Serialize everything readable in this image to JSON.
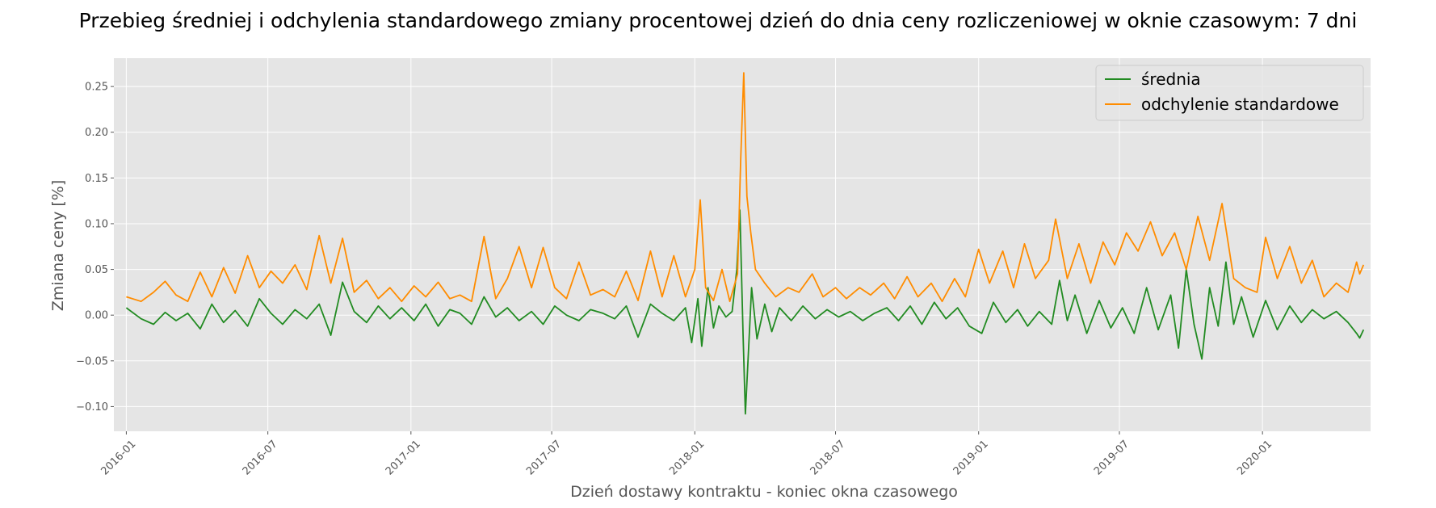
{
  "chart_data": {
    "type": "line",
    "title": "Przebieg średniej i odchylenia standardowego zmiany procentowej dzień do dnia ceny rozliczeniowej w oknie czasowym: 7 dni",
    "xlabel": "Dzień dostawy kontraktu - koniec okna czasowego",
    "ylabel": "Zmiana ceny [%]",
    "xlim": [
      "2015-12-16",
      "2020-05-19"
    ],
    "ylim": [
      -0.127,
      0.281
    ],
    "x_ticks": [
      "2016-01",
      "2016-07",
      "2017-01",
      "2017-07",
      "2018-01",
      "2018-07",
      "2019-01",
      "2019-07",
      "2020-01"
    ],
    "y_ticks": [
      -0.1,
      -0.05,
      0.0,
      0.05,
      0.1,
      0.15,
      0.2,
      0.25
    ],
    "y_tick_labels": [
      "−0.10",
      "−0.05",
      "0.00",
      "0.05",
      "0.10",
      "0.15",
      "0.20",
      "0.25"
    ],
    "grid": true,
    "legend_position": "top-right",
    "background": "#e5e5e5",
    "series": [
      {
        "name": "średnia",
        "color": "#228b22",
        "points": [
          [
            "2016-01-01",
            0.008
          ],
          [
            "2016-01-20",
            -0.004
          ],
          [
            "2016-02-05",
            -0.01
          ],
          [
            "2016-02-20",
            0.003
          ],
          [
            "2016-03-05",
            -0.006
          ],
          [
            "2016-03-20",
            0.002
          ],
          [
            "2016-04-05",
            -0.015
          ],
          [
            "2016-04-20",
            0.012
          ],
          [
            "2016-05-05",
            -0.008
          ],
          [
            "2016-05-20",
            0.005
          ],
          [
            "2016-06-05",
            -0.012
          ],
          [
            "2016-06-20",
            0.018
          ],
          [
            "2016-07-05",
            0.002
          ],
          [
            "2016-07-20",
            -0.01
          ],
          [
            "2016-08-05",
            0.006
          ],
          [
            "2016-08-20",
            -0.004
          ],
          [
            "2016-09-05",
            0.012
          ],
          [
            "2016-09-20",
            -0.022
          ],
          [
            "2016-10-05",
            0.036
          ],
          [
            "2016-10-20",
            0.004
          ],
          [
            "2016-11-05",
            -0.008
          ],
          [
            "2016-11-20",
            0.01
          ],
          [
            "2016-12-05",
            -0.004
          ],
          [
            "2016-12-20",
            0.008
          ],
          [
            "2017-01-05",
            -0.006
          ],
          [
            "2017-01-20",
            0.012
          ],
          [
            "2017-02-05",
            -0.012
          ],
          [
            "2017-02-20",
            0.006
          ],
          [
            "2017-03-05",
            0.002
          ],
          [
            "2017-03-20",
            -0.01
          ],
          [
            "2017-04-05",
            0.02
          ],
          [
            "2017-04-20",
            -0.002
          ],
          [
            "2017-05-05",
            0.008
          ],
          [
            "2017-05-20",
            -0.006
          ],
          [
            "2017-06-05",
            0.004
          ],
          [
            "2017-06-20",
            -0.01
          ],
          [
            "2017-07-05",
            0.01
          ],
          [
            "2017-07-20",
            0.0
          ],
          [
            "2017-08-05",
            -0.006
          ],
          [
            "2017-08-20",
            0.006
          ],
          [
            "2017-09-05",
            0.002
          ],
          [
            "2017-09-20",
            -0.004
          ],
          [
            "2017-10-05",
            0.01
          ],
          [
            "2017-10-20",
            -0.024
          ],
          [
            "2017-11-05",
            0.012
          ],
          [
            "2017-11-20",
            0.002
          ],
          [
            "2017-12-05",
            -0.006
          ],
          [
            "2017-12-20",
            0.008
          ],
          [
            "2017-12-28",
            -0.03
          ],
          [
            "2018-01-05",
            0.018
          ],
          [
            "2018-01-10",
            -0.034
          ],
          [
            "2018-01-18",
            0.03
          ],
          [
            "2018-01-25",
            -0.014
          ],
          [
            "2018-02-01",
            0.01
          ],
          [
            "2018-02-10",
            -0.002
          ],
          [
            "2018-02-18",
            0.004
          ],
          [
            "2018-02-24",
            0.05
          ],
          [
            "2018-02-28",
            0.115
          ],
          [
            "2018-03-04",
            -0.02
          ],
          [
            "2018-03-07",
            -0.108
          ],
          [
            "2018-03-11",
            -0.04
          ],
          [
            "2018-03-15",
            0.03
          ],
          [
            "2018-03-22",
            -0.026
          ],
          [
            "2018-04-01",
            0.012
          ],
          [
            "2018-04-10",
            -0.018
          ],
          [
            "2018-04-20",
            0.008
          ],
          [
            "2018-05-05",
            -0.006
          ],
          [
            "2018-05-20",
            0.01
          ],
          [
            "2018-06-05",
            -0.004
          ],
          [
            "2018-06-20",
            0.006
          ],
          [
            "2018-07-05",
            -0.002
          ],
          [
            "2018-07-20",
            0.004
          ],
          [
            "2018-08-05",
            -0.006
          ],
          [
            "2018-08-20",
            0.002
          ],
          [
            "2018-09-05",
            0.008
          ],
          [
            "2018-09-20",
            -0.006
          ],
          [
            "2018-10-05",
            0.01
          ],
          [
            "2018-10-20",
            -0.01
          ],
          [
            "2018-11-05",
            0.014
          ],
          [
            "2018-11-20",
            -0.004
          ],
          [
            "2018-12-05",
            0.008
          ],
          [
            "2018-12-20",
            -0.012
          ],
          [
            "2019-01-05",
            -0.02
          ],
          [
            "2019-01-20",
            0.014
          ],
          [
            "2019-02-05",
            -0.008
          ],
          [
            "2019-02-20",
            0.006
          ],
          [
            "2019-03-05",
            -0.012
          ],
          [
            "2019-03-20",
            0.004
          ],
          [
            "2019-04-05",
            -0.01
          ],
          [
            "2019-04-15",
            0.038
          ],
          [
            "2019-04-25",
            -0.006
          ],
          [
            "2019-05-05",
            0.022
          ],
          [
            "2019-05-20",
            -0.02
          ],
          [
            "2019-06-05",
            0.016
          ],
          [
            "2019-06-20",
            -0.014
          ],
          [
            "2019-07-05",
            0.008
          ],
          [
            "2019-07-20",
            -0.02
          ],
          [
            "2019-08-05",
            0.03
          ],
          [
            "2019-08-20",
            -0.016
          ],
          [
            "2019-09-05",
            0.022
          ],
          [
            "2019-09-15",
            -0.036
          ],
          [
            "2019-09-25",
            0.05
          ],
          [
            "2019-10-05",
            -0.01
          ],
          [
            "2019-10-15",
            -0.048
          ],
          [
            "2019-10-25",
            0.03
          ],
          [
            "2019-11-05",
            -0.012
          ],
          [
            "2019-11-15",
            0.058
          ],
          [
            "2019-11-25",
            -0.01
          ],
          [
            "2019-12-05",
            0.02
          ],
          [
            "2019-12-20",
            -0.024
          ],
          [
            "2020-01-05",
            0.016
          ],
          [
            "2020-01-20",
            -0.016
          ],
          [
            "2020-02-05",
            0.01
          ],
          [
            "2020-02-20",
            -0.008
          ],
          [
            "2020-03-05",
            0.006
          ],
          [
            "2020-03-20",
            -0.004
          ],
          [
            "2020-04-05",
            0.004
          ],
          [
            "2020-04-20",
            -0.008
          ],
          [
            "2020-05-01",
            -0.02
          ],
          [
            "2020-05-05",
            -0.025
          ],
          [
            "2020-05-10",
            -0.016
          ]
        ]
      },
      {
        "name": "odchylenie standardowe",
        "color": "#ff8c00",
        "points": [
          [
            "2016-01-01",
            0.02
          ],
          [
            "2016-01-20",
            0.015
          ],
          [
            "2016-02-05",
            0.025
          ],
          [
            "2016-02-20",
            0.037
          ],
          [
            "2016-03-05",
            0.022
          ],
          [
            "2016-03-20",
            0.015
          ],
          [
            "2016-04-05",
            0.047
          ],
          [
            "2016-04-20",
            0.02
          ],
          [
            "2016-05-05",
            0.052
          ],
          [
            "2016-05-20",
            0.024
          ],
          [
            "2016-06-05",
            0.065
          ],
          [
            "2016-06-20",
            0.03
          ],
          [
            "2016-07-05",
            0.048
          ],
          [
            "2016-07-20",
            0.035
          ],
          [
            "2016-08-05",
            0.055
          ],
          [
            "2016-08-20",
            0.028
          ],
          [
            "2016-09-05",
            0.087
          ],
          [
            "2016-09-20",
            0.035
          ],
          [
            "2016-10-05",
            0.084
          ],
          [
            "2016-10-20",
            0.025
          ],
          [
            "2016-11-05",
            0.038
          ],
          [
            "2016-11-20",
            0.018
          ],
          [
            "2016-12-05",
            0.03
          ],
          [
            "2016-12-20",
            0.015
          ],
          [
            "2017-01-05",
            0.032
          ],
          [
            "2017-01-20",
            0.02
          ],
          [
            "2017-02-05",
            0.036
          ],
          [
            "2017-02-20",
            0.018
          ],
          [
            "2017-03-05",
            0.022
          ],
          [
            "2017-03-20",
            0.015
          ],
          [
            "2017-04-05",
            0.086
          ],
          [
            "2017-04-20",
            0.018
          ],
          [
            "2017-05-05",
            0.04
          ],
          [
            "2017-05-20",
            0.075
          ],
          [
            "2017-06-05",
            0.03
          ],
          [
            "2017-06-20",
            0.074
          ],
          [
            "2017-07-05",
            0.03
          ],
          [
            "2017-07-20",
            0.018
          ],
          [
            "2017-08-05",
            0.058
          ],
          [
            "2017-08-20",
            0.022
          ],
          [
            "2017-09-05",
            0.028
          ],
          [
            "2017-09-20",
            0.02
          ],
          [
            "2017-10-05",
            0.048
          ],
          [
            "2017-10-20",
            0.016
          ],
          [
            "2017-11-05",
            0.07
          ],
          [
            "2017-11-20",
            0.02
          ],
          [
            "2017-12-05",
            0.065
          ],
          [
            "2017-12-20",
            0.02
          ],
          [
            "2018-01-01",
            0.05
          ],
          [
            "2018-01-08",
            0.126
          ],
          [
            "2018-01-15",
            0.03
          ],
          [
            "2018-01-25",
            0.016
          ],
          [
            "2018-02-05",
            0.05
          ],
          [
            "2018-02-15",
            0.015
          ],
          [
            "2018-02-25",
            0.045
          ],
          [
            "2018-03-01",
            0.17
          ],
          [
            "2018-03-05",
            0.265
          ],
          [
            "2018-03-09",
            0.13
          ],
          [
            "2018-03-14",
            0.09
          ],
          [
            "2018-03-20",
            0.05
          ],
          [
            "2018-04-01",
            0.035
          ],
          [
            "2018-04-15",
            0.02
          ],
          [
            "2018-05-01",
            0.03
          ],
          [
            "2018-05-15",
            0.025
          ],
          [
            "2018-06-01",
            0.045
          ],
          [
            "2018-06-15",
            0.02
          ],
          [
            "2018-07-01",
            0.03
          ],
          [
            "2018-07-15",
            0.018
          ],
          [
            "2018-08-01",
            0.03
          ],
          [
            "2018-08-15",
            0.022
          ],
          [
            "2018-09-01",
            0.035
          ],
          [
            "2018-09-15",
            0.018
          ],
          [
            "2018-10-01",
            0.042
          ],
          [
            "2018-10-15",
            0.02
          ],
          [
            "2018-11-01",
            0.035
          ],
          [
            "2018-11-15",
            0.015
          ],
          [
            "2018-12-01",
            0.04
          ],
          [
            "2018-12-15",
            0.02
          ],
          [
            "2019-01-01",
            0.072
          ],
          [
            "2019-01-15",
            0.035
          ],
          [
            "2019-02-01",
            0.07
          ],
          [
            "2019-02-15",
            0.03
          ],
          [
            "2019-03-01",
            0.078
          ],
          [
            "2019-03-15",
            0.04
          ],
          [
            "2019-04-01",
            0.06
          ],
          [
            "2019-04-10",
            0.105
          ],
          [
            "2019-04-25",
            0.04
          ],
          [
            "2019-05-10",
            0.078
          ],
          [
            "2019-05-25",
            0.035
          ],
          [
            "2019-06-10",
            0.08
          ],
          [
            "2019-06-25",
            0.055
          ],
          [
            "2019-07-10",
            0.09
          ],
          [
            "2019-07-25",
            0.07
          ],
          [
            "2019-08-10",
            0.102
          ],
          [
            "2019-08-25",
            0.065
          ],
          [
            "2019-09-10",
            0.09
          ],
          [
            "2019-09-25",
            0.05
          ],
          [
            "2019-10-10",
            0.108
          ],
          [
            "2019-10-25",
            0.06
          ],
          [
            "2019-11-10",
            0.122
          ],
          [
            "2019-11-25",
            0.04
          ],
          [
            "2019-12-10",
            0.03
          ],
          [
            "2019-12-25",
            0.025
          ],
          [
            "2020-01-05",
            0.085
          ],
          [
            "2020-01-20",
            0.04
          ],
          [
            "2020-02-05",
            0.075
          ],
          [
            "2020-02-20",
            0.035
          ],
          [
            "2020-03-05",
            0.06
          ],
          [
            "2020-03-20",
            0.02
          ],
          [
            "2020-04-05",
            0.035
          ],
          [
            "2020-04-20",
            0.025
          ],
          [
            "2020-05-01",
            0.058
          ],
          [
            "2020-05-05",
            0.045
          ],
          [
            "2020-05-10",
            0.055
          ]
        ]
      }
    ]
  }
}
